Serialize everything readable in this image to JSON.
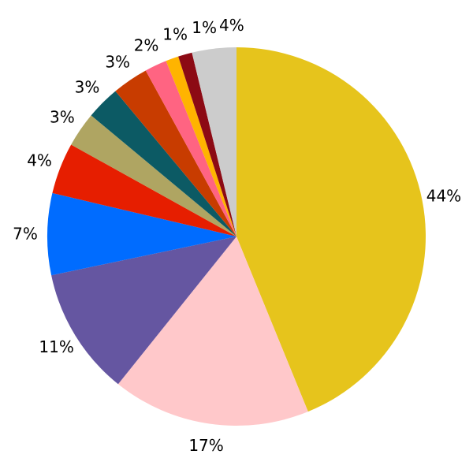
{
  "chart_data": {
    "type": "pie",
    "start_angle": "top",
    "direction": "clockwise",
    "slices": [
      {
        "label": "44%",
        "value": 44,
        "color": "#E6C41C"
      },
      {
        "label": "17%",
        "value": 17,
        "color": "#FFC8CA"
      },
      {
        "label": "11%",
        "value": 11,
        "color": "#6556A1"
      },
      {
        "label": "7%",
        "value": 7,
        "color": "#006CFF"
      },
      {
        "label": "4%",
        "value": 4.4,
        "color": "#E61E00"
      },
      {
        "label": "3%",
        "value": 3,
        "color": "#AFA562"
      },
      {
        "label": "3%",
        "value": 2.9,
        "color": "#0C5A64"
      },
      {
        "label": "3%",
        "value": 3.1,
        "color": "#C83C00"
      },
      {
        "label": "2%",
        "value": 1.9,
        "color": "#FF6482"
      },
      {
        "label": "1%",
        "value": 1.1,
        "color": "#FFB400"
      },
      {
        "label": "1%",
        "value": 1.2,
        "color": "#8C0A14"
      },
      {
        "label": "4%",
        "value": 3.8,
        "color": "#CCCCCC"
      }
    ]
  }
}
